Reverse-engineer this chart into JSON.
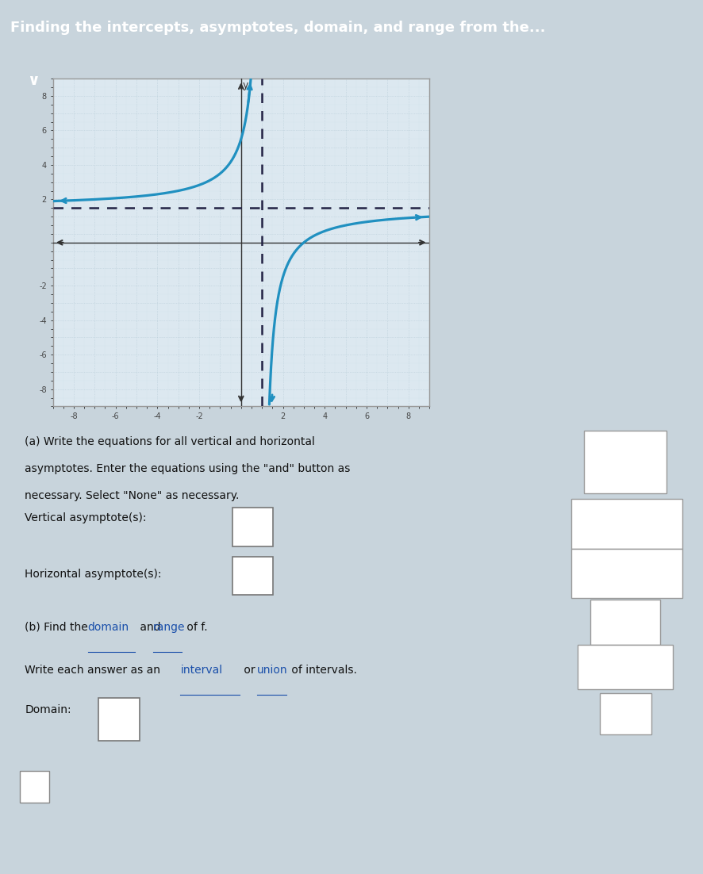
{
  "title": "Finding the intercepts, asymptotes, domain, and range from the...",
  "title_bg_color": "#2e86ab",
  "title_text_color": "#ffffff",
  "graph_bg_color": "#dce8f0",
  "graph_border_color": "#888888",
  "curve_color": "#2090c0",
  "axis_color": "#333333",
  "grid_major_color": "#b8cdd8",
  "grid_minor_color": "#ccdde6",
  "dashed_color": "#222244",
  "xlim": [
    -9,
    9
  ],
  "ylim": [
    -9.5,
    9.5
  ],
  "xtick_labels": [
    -8,
    -6,
    -4,
    -2,
    2,
    4,
    6,
    8
  ],
  "ytick_labels": [
    -8,
    -6,
    -4,
    -2,
    2,
    4,
    6,
    8
  ],
  "vertical_asymptote_x": 1,
  "horizontal_asymptote_y": 2,
  "section_a_lines": [
    "(a) Write the equations for all vertical and horizontal",
    "asymptotes. Enter the equations using the \"and\" button as",
    "necessary. Select \"None\" as necessary."
  ],
  "section_a_vert_label": "Vertical asymptote(s):",
  "section_a_horiz_label": "Horizontal asymptote(s):",
  "section_b_line1_plain": "(b) Find the ",
  "section_b_line1_domain": "domain",
  "section_b_line1_mid": " and ",
  "section_b_line1_range": "range",
  "section_b_line1_end": " of f.",
  "section_b_line2_plain": "Write each answer as an ",
  "section_b_line2_interval": "interval",
  "section_b_line2_mid": " or ",
  "section_b_line2_union": "union",
  "section_b_line2_end": " of intervals.",
  "section_b_domain_label": "Domain:",
  "section_bg": "#f4f4f4",
  "section_border": "#aaaaaa",
  "input_box_color": "#ffffff",
  "sidebar_bg": "#e4e4e4",
  "overall_bg": "#c8d4dc",
  "graph_area_bg": "#c8d4dc"
}
